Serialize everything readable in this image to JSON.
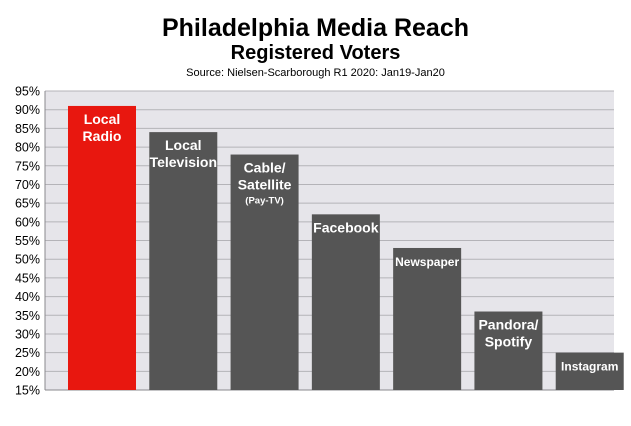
{
  "chart_data": {
    "type": "bar",
    "title": "Philadelphia Media Reach",
    "subtitle": "Registered Voters",
    "source": "Source: Nielsen-Scarborough R1 2020: Jan19-Jan20",
    "ylim": [
      15,
      95
    ],
    "yticks": [
      "15%",
      "20%",
      "25%",
      "30%",
      "35%",
      "40%",
      "45%",
      "50%",
      "55%",
      "60%",
      "65%",
      "70%",
      "75%",
      "80%",
      "85%",
      "90%",
      "95%"
    ],
    "grid": true,
    "categories": [
      {
        "lines": [
          "Local",
          "Radio"
        ],
        "sub": ""
      },
      {
        "lines": [
          "Local",
          "Television"
        ],
        "sub": ""
      },
      {
        "lines": [
          "Cable/",
          "Satellite"
        ],
        "sub": "(Pay-TV)"
      },
      {
        "lines": [
          "Facebook"
        ],
        "sub": ""
      },
      {
        "lines": [
          "Newspaper"
        ],
        "sub": ""
      },
      {
        "lines": [
          "Pandora/",
          "Spotify"
        ],
        "sub": ""
      },
      {
        "lines": [
          "Instagram"
        ],
        "sub": ""
      }
    ],
    "values": [
      91,
      84,
      78,
      62,
      53,
      36,
      25
    ],
    "colors": [
      "#e8170f",
      "#555555",
      "#555555",
      "#555555",
      "#555555",
      "#555555",
      "#555555"
    ],
    "plot_bg": "#e6e5ea",
    "grid_color": "#b4b3b8"
  }
}
